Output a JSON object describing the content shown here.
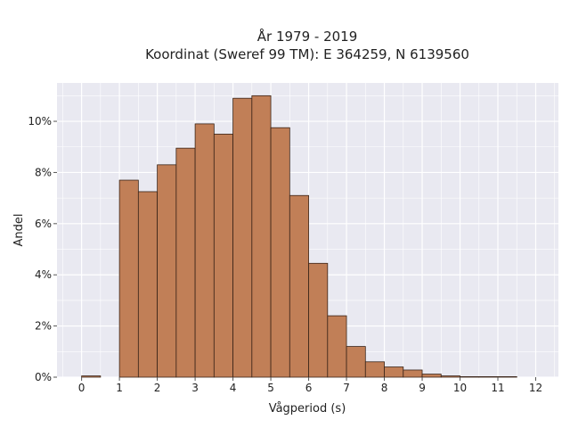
{
  "chart_data": {
    "type": "bar",
    "title_line1": "År 1979 - 2019",
    "title_line2": "Koordinat (Sweref 99 TM): E 364259, N 6139560",
    "xlabel": "Vågperiod (s)",
    "ylabel": "Andel",
    "xlim": [
      -0.65,
      12.6
    ],
    "ylim": [
      0,
      11.5
    ],
    "x_ticks": [
      0,
      1,
      2,
      3,
      4,
      5,
      6,
      7,
      8,
      9,
      10,
      11,
      12
    ],
    "y_ticks": [
      0,
      2,
      4,
      6,
      8,
      10
    ],
    "y_tick_suffix": "%",
    "bin_width": 0.5,
    "bins": [
      {
        "start": 0.0,
        "value": 0.05
      },
      {
        "start": 1.0,
        "value": 7.7
      },
      {
        "start": 1.5,
        "value": 7.25
      },
      {
        "start": 2.0,
        "value": 8.3
      },
      {
        "start": 2.5,
        "value": 8.95
      },
      {
        "start": 3.0,
        "value": 9.9
      },
      {
        "start": 3.5,
        "value": 9.5
      },
      {
        "start": 4.0,
        "value": 10.9
      },
      {
        "start": 4.5,
        "value": 11.0
      },
      {
        "start": 5.0,
        "value": 9.75
      },
      {
        "start": 5.5,
        "value": 7.1
      },
      {
        "start": 6.0,
        "value": 4.45
      },
      {
        "start": 6.5,
        "value": 2.4
      },
      {
        "start": 7.0,
        "value": 1.2
      },
      {
        "start": 7.5,
        "value": 0.6
      },
      {
        "start": 8.0,
        "value": 0.4
      },
      {
        "start": 8.5,
        "value": 0.28
      },
      {
        "start": 9.0,
        "value": 0.12
      },
      {
        "start": 9.5,
        "value": 0.05
      },
      {
        "start": 10.0,
        "value": 0.02
      },
      {
        "start": 10.5,
        "value": 0.02
      },
      {
        "start": 11.0,
        "value": 0.02
      }
    ],
    "grid": true,
    "legend": "none",
    "colors": {
      "bar_fill": "#c17f57",
      "bar_stroke": "#3a2418",
      "plot_bg": "#e9e9f1",
      "grid": "#ffffff"
    }
  }
}
